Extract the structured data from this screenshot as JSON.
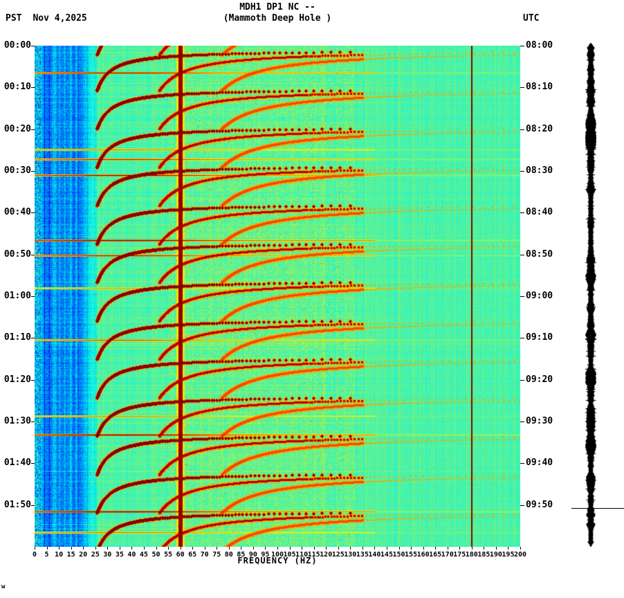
{
  "header": {
    "tz_left": "PST",
    "date": "Nov 4,2025",
    "title_line1": "MDH1 DP1 NC --",
    "title_line2": "(Mammoth Deep Hole )",
    "tz_right": "UTC"
  },
  "chart_data": {
    "type": "heatmap",
    "subtype": "seismic-spectrogram",
    "title": "MDH1 DP1 NC -- (Mammoth Deep Hole )",
    "xlabel": "FREQUENCY (HZ)",
    "ylabel_left": "time PST",
    "ylabel_right": "time UTC",
    "grid": false,
    "legend": "none",
    "colormap": "jet",
    "freq_range_hz": [
      0,
      200
    ],
    "duration_minutes": 120,
    "x_ticks_hz": [
      0,
      5,
      10,
      15,
      20,
      25,
      30,
      35,
      40,
      45,
      50,
      55,
      60,
      65,
      70,
      75,
      80,
      85,
      90,
      95,
      100,
      105,
      110,
      115,
      120,
      125,
      130,
      135,
      140,
      145,
      150,
      155,
      160,
      165,
      170,
      175,
      180,
      185,
      190,
      195,
      200
    ],
    "time_axis_left_pst": [
      "00:00",
      "00:10",
      "00:20",
      "00:30",
      "00:40",
      "00:50",
      "01:00",
      "01:10",
      "01:20",
      "01:30",
      "01:40",
      "01:50"
    ],
    "time_axis_right_utc": [
      "08:00",
      "08:10",
      "08:20",
      "08:30",
      "08:40",
      "08:50",
      "09:00",
      "09:10",
      "09:20",
      "09:30",
      "09:40",
      "09:50"
    ],
    "features": {
      "powerline_hz": 60,
      "powerline_harmonic_hz": 180,
      "low_freq_noise_band_hz": [
        0,
        20
      ],
      "tremor_min_freq_hz": 20,
      "tremor_event_duration_min": 9.2,
      "tremor_curve": {
        "k": 55,
        "a": 0.5
      },
      "tremor_events_start_min": [
        -7.0,
        1.5,
        10.7,
        19.9,
        29.1,
        38.3,
        47.5,
        56.7,
        65.9,
        75.1,
        84.3,
        93.5,
        102.7,
        111.9
      ],
      "broadband_bursts": [
        {
          "min": 6.5,
          "strength": 0.85
        },
        {
          "min": 24.8,
          "strength": 0.55
        },
        {
          "min": 27.2,
          "strength": 0.75
        },
        {
          "min": 31.0,
          "strength": 0.9
        },
        {
          "min": 46.6,
          "strength": 1.0
        },
        {
          "min": 50.2,
          "strength": 0.8
        },
        {
          "min": 58.0,
          "strength": 0.45
        },
        {
          "min": 70.5,
          "strength": 0.65
        },
        {
          "min": 88.6,
          "strength": 0.5
        },
        {
          "min": 93.2,
          "strength": 1.0
        },
        {
          "min": 111.6,
          "strength": 1.0
        },
        {
          "min": 116.5,
          "strength": 0.55
        }
      ],
      "strip_marker_min": 110.7
    },
    "amplitude_strip": {
      "present": true,
      "color": "#000000"
    }
  },
  "corner_mark": "w"
}
